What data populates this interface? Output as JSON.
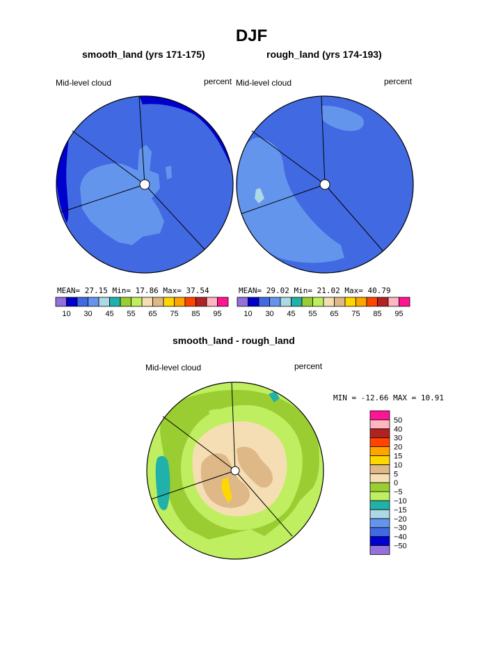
{
  "title": "DJF",
  "colors": {
    "abs_scale": [
      "#9370DB",
      "#0000CD",
      "#4169E1",
      "#6495ED",
      "#ADD8E6",
      "#20B2AA",
      "#9ACD32",
      "#BFEF60",
      "#F5DEB3",
      "#DEB887",
      "#FFD700",
      "#FFA500",
      "#FF4500",
      "#B22222",
      "#FFB6C1",
      "#FF1493"
    ],
    "diff_scale": [
      "#9370DB",
      "#0000CD",
      "#4169E1",
      "#6495ED",
      "#ADD8E6",
      "#20B2AA",
      "#BFEF60",
      "#9ACD32",
      "#F5DEB3",
      "#DEB887",
      "#FFD700",
      "#FFA500",
      "#FF4500",
      "#B22222",
      "#FFB6C1",
      "#FF1493"
    ]
  },
  "chart_data": [
    {
      "type": "heatmap",
      "title": "smooth_land (yrs 171-175)",
      "left_label": "Mid-level cloud",
      "right_label": "percent",
      "stats": {
        "mean_label": "MEAN=",
        "mean": "27.15",
        "min_label": "Min=",
        "min": "17.86",
        "max_label": "Max=",
        "max": "37.54"
      },
      "colorbar_labels": [
        "10",
        "30",
        "45",
        "55",
        "65",
        "75",
        "85",
        "95"
      ]
    },
    {
      "type": "heatmap",
      "title": "rough_land (yrs 174-193)",
      "left_label": "Mid-level cloud",
      "right_label": "percent",
      "stats": {
        "mean_label": "MEAN=",
        "mean": "29.02",
        "min_label": "Min=",
        "min": "21.02",
        "max_label": "Max=",
        "max": "40.79"
      },
      "colorbar_labels": [
        "10",
        "30",
        "45",
        "55",
        "65",
        "75",
        "85",
        "95"
      ]
    },
    {
      "type": "heatmap",
      "title": "smooth_land - rough_land",
      "left_label": "Mid-level cloud",
      "right_label": "percent",
      "stats": {
        "min_label": "MIN =",
        "min": "-12.66",
        "max_label": "MAX =",
        "max": "10.91"
      },
      "colorbar_labels": [
        "50",
        "40",
        "30",
        "20",
        "15",
        "10",
        "5",
        "0",
        "−5",
        "−10",
        "−15",
        "−20",
        "−30",
        "−40",
        "−50"
      ]
    }
  ]
}
